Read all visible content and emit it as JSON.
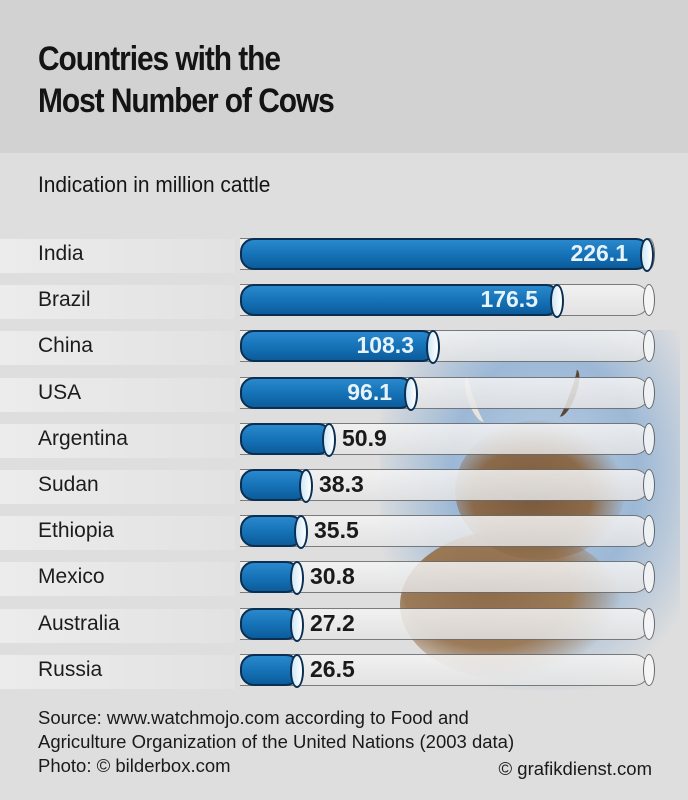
{
  "header": {
    "title_line1": "Countries with the",
    "title_line2": "Most Number of Cows",
    "subtitle": "Indication in million cattle"
  },
  "footer": {
    "source_line1": "Source: www.watchmojo.com according to Food and",
    "source_line2": "Agriculture Organization of the United Nations (2003 data)",
    "photo_credit": "Photo: © bilderbox.com",
    "graphic_credit": "© grafikdienst.com"
  },
  "colors": {
    "bar": "#1673b8",
    "bar_outline": "#0a2f52",
    "header_bg": "#d2d2d2",
    "body_bg": "#dedede"
  },
  "rows": [
    {
      "country": "India",
      "value": "226.1"
    },
    {
      "country": "Brazil",
      "value": "176.5"
    },
    {
      "country": "China",
      "value": "108.3"
    },
    {
      "country": "USA",
      "value": "96.1"
    },
    {
      "country": "Argentina",
      "value": "50.9"
    },
    {
      "country": "Sudan",
      "value": "38.3"
    },
    {
      "country": "Ethiopia",
      "value": "35.5"
    },
    {
      "country": "Mexico",
      "value": "30.8"
    },
    {
      "country": "Australia",
      "value": "27.2"
    },
    {
      "country": "Russia",
      "value": "26.5"
    }
  ],
  "chart_data": {
    "type": "bar",
    "orientation": "horizontal",
    "title": "Countries with the Most Number of Cows",
    "subtitle": "Indication in million cattle",
    "categories": [
      "India",
      "Brazil",
      "China",
      "USA",
      "Argentina",
      "Sudan",
      "Ethiopia",
      "Mexico",
      "Australia",
      "Russia"
    ],
    "values": [
      226.1,
      176.5,
      108.3,
      96.1,
      50.9,
      38.3,
      35.5,
      30.8,
      27.2,
      26.5
    ],
    "xlabel": "",
    "ylabel": "",
    "unit": "million cattle",
    "xlim": [
      0,
      226.1
    ],
    "grid": false,
    "legend": "none",
    "source": "www.watchmojo.com according to Food and Agriculture Organization of the United Nations (2003 data)"
  }
}
